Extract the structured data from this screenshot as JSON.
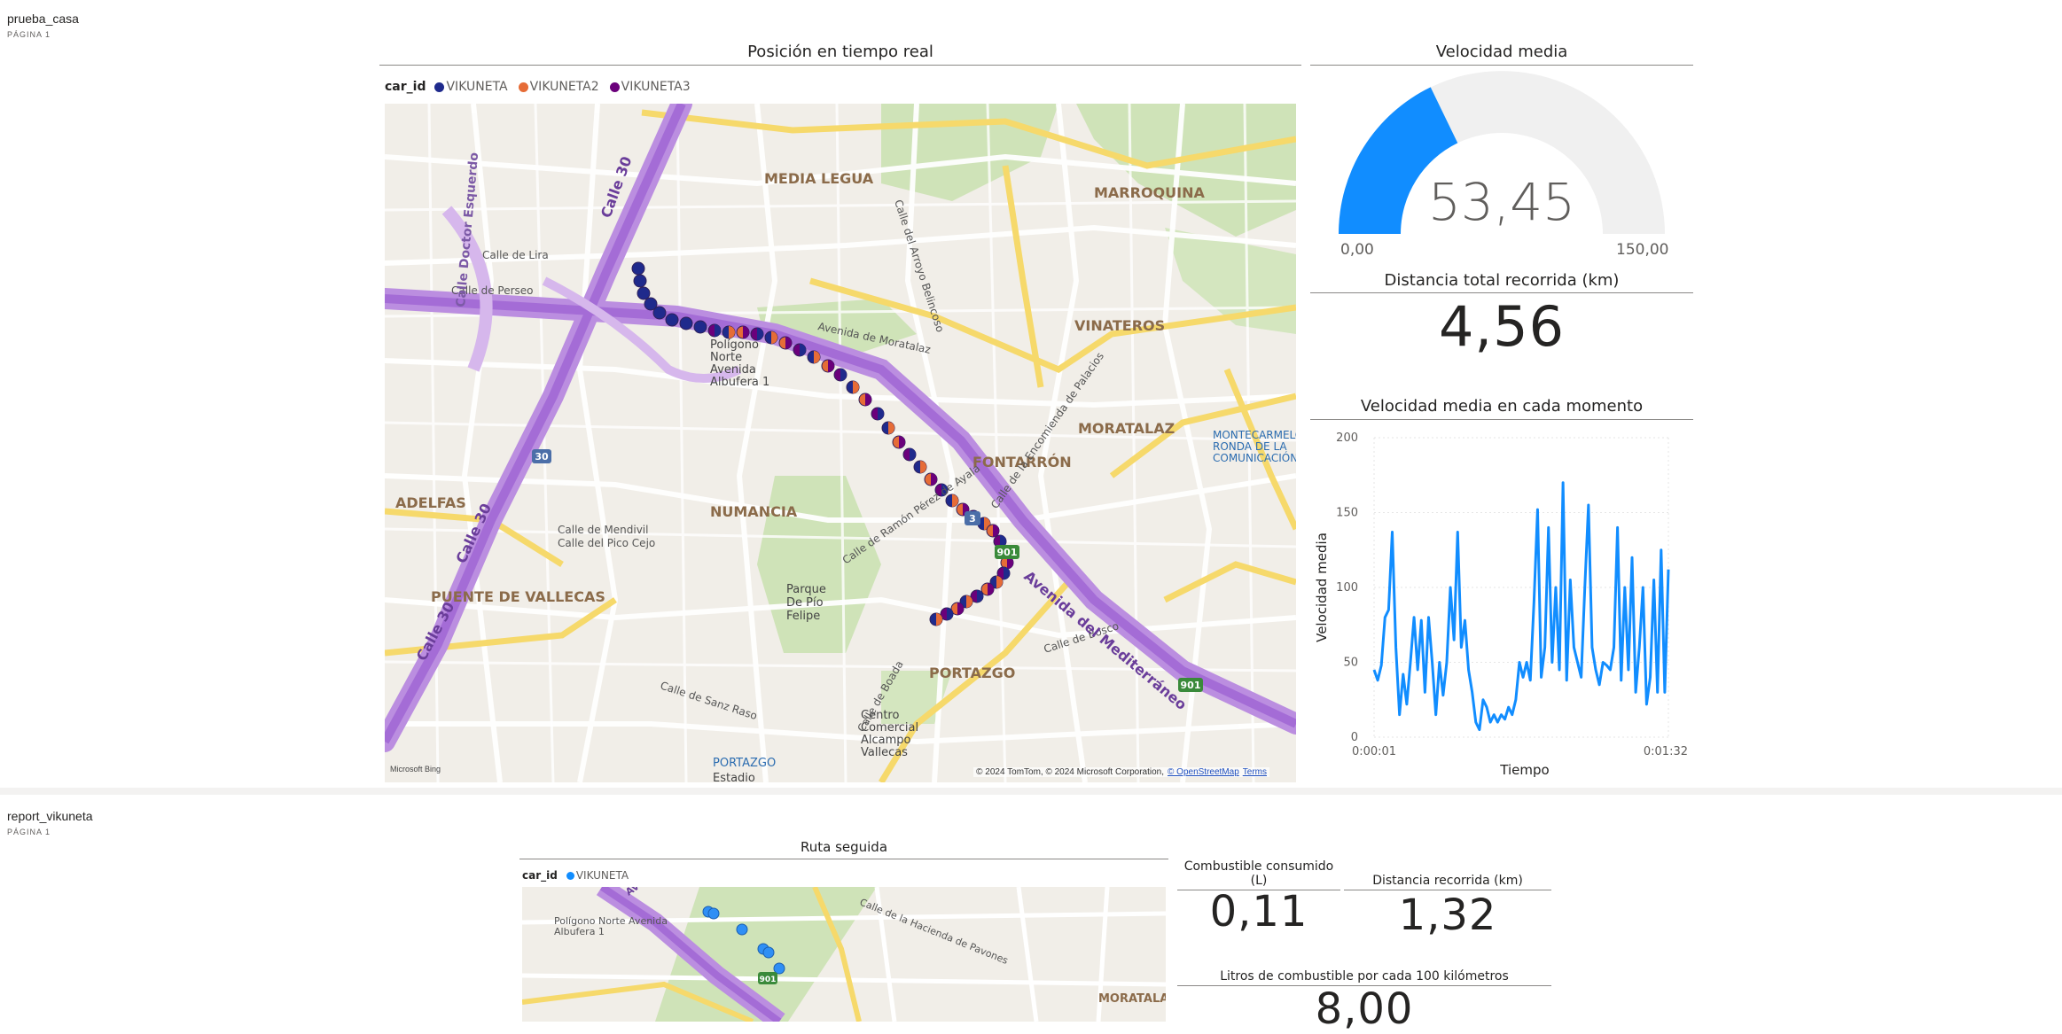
{
  "report1": {
    "name": "prueba_casa",
    "page": "PÁGINA 1",
    "map": {
      "title": "Posición en tiempo real",
      "legend_title": "car_id",
      "legend": [
        {
          "name": "VIKUNETA",
          "color": "#1f2a8c"
        },
        {
          "name": "VIKUNETA2",
          "color": "#e66c37"
        },
        {
          "name": "VIKUNETA3",
          "color": "#6b007b"
        }
      ],
      "labels": {
        "media_legua": "MEDIA LEGUA",
        "marroquina": "MARROQUINA",
        "vinateros": "VINATEROS",
        "moratalaz": "MORATALAZ",
        "fontarron": "FONTARRÓN",
        "numancia": "NUMANCIA",
        "adelfas": "ADELFAS",
        "puente_vallecas": "PUENTE DE VALLECAS",
        "portazgo": "PORTAZGO",
        "portazgo_metro": "PORTAZGO",
        "estadio": "Estadio",
        "parque": "Parque\nDe Pío\nFelipe",
        "poligono": "Polígono\nNorte\nAvenida\nAlbufera 1",
        "montecarmelo": "MONTECARMELO\nRONDA DE LA\nCOMUNICACIÓN",
        "centro_comercial": "Centro\nComercial\nAlcampo\nVallecas",
        "calle30a": "Calle 30",
        "calle30b": "Calle 30",
        "calle30c": "Calle 30",
        "doctor_esquerdo": "Calle Doctor Esquerdo",
        "av_moratalaz": "Avenida de Moratalaz",
        "av_mediterraneo": "Avenida del Mediterráneo",
        "calle_perseo": "Calle de Perseo",
        "calle_lira": "Calle de Lira",
        "calle_boada": "Calle de Boada",
        "calle_sanz_pastor": "Calle de Sanz Raso",
        "calle_encomienda": "Calle de la Encomienda de Palacios",
        "calle_arroyo": "Calle del Arroyo Belincoso",
        "calle_pico_cejo": "Calle del Pico Cejo",
        "calle_mendivil": "Calle de Mendivil",
        "calle_bosco": "Calle de Bosco",
        "calle_ramon": "Calle de Ramón Pérez de Ayala",
        "badge_30": "30",
        "badge_3": "3",
        "badge_901a": "901",
        "badge_901b": "901"
      },
      "attribution": "© 2024 TomTom, © 2024 Microsoft Corporation,",
      "attribution_osm": "© OpenStreetMap",
      "attribution_terms": "Terms",
      "bing": "Microsoft Bing"
    },
    "gauge": {
      "title": "Velocidad media",
      "value": "53,45",
      "min": "0,00",
      "max": "150,00",
      "fraction": 0.3563,
      "fill_color": "#118dff",
      "track_color": "#f0f0f0"
    },
    "distance_card": {
      "title": "Distancia total recorrida (km)",
      "value": "4,56"
    },
    "line_chart": {
      "title": "Velocidad media en cada momento",
      "ylabel": "Velocidad media",
      "xlabel": "Tiempo",
      "x_start": "0:00:01",
      "x_end": "0:01:32",
      "y_ticks": [
        "0",
        "50",
        "100",
        "150",
        "200"
      ]
    }
  },
  "report2": {
    "name": "report_vikuneta",
    "page": "PÁGINA 1",
    "map": {
      "title": "Ruta seguida",
      "legend_title": "car_id",
      "legend": [
        {
          "name": "VIKUNETA",
          "color": "#118dff"
        }
      ],
      "labels": {
        "av_mediterraneo": "Avenida del Mediterráneo",
        "poligono": "Polígono Norte Avenida\nAlbufera 1",
        "hacienda": "Calle de la Hacienda de Pavones",
        "badge_901": "901",
        "moratalaz": "MORATALAZ"
      }
    },
    "fuel_card": {
      "title": "Combustible consumido\n(L)",
      "value": "0,11"
    },
    "distance_card": {
      "title": "Distancia recorrida (km)",
      "value": "1,32"
    },
    "per100_card": {
      "title": "Litros de combustible por cada 100 kilómetros",
      "value": "8,00"
    }
  },
  "chart_data": {
    "type": "line",
    "title": "Velocidad media en cada momento",
    "xlabel": "Tiempo",
    "ylabel": "Velocidad media",
    "ylim": [
      0,
      200
    ],
    "x_range": [
      "0:00:01",
      "0:01:32"
    ],
    "grid": true,
    "series": [
      {
        "color": "#118dff",
        "values": [
          45,
          38,
          48,
          80,
          85,
          137,
          60,
          15,
          42,
          22,
          50,
          80,
          45,
          78,
          30,
          80,
          50,
          15,
          50,
          28,
          50,
          100,
          65,
          137,
          60,
          78,
          45,
          30,
          10,
          5,
          25,
          20,
          10,
          15,
          10,
          15,
          12,
          20,
          15,
          25,
          50,
          40,
          50,
          38,
          90,
          152,
          40,
          60,
          140,
          50,
          100,
          45,
          170,
          38,
          105,
          60,
          50,
          40,
          100,
          155,
          60,
          45,
          35,
          50,
          48,
          45,
          60,
          140,
          38,
          100,
          45,
          120,
          30,
          60,
          100,
          22,
          40,
          105,
          30,
          125,
          30,
          112
        ]
      }
    ]
  }
}
